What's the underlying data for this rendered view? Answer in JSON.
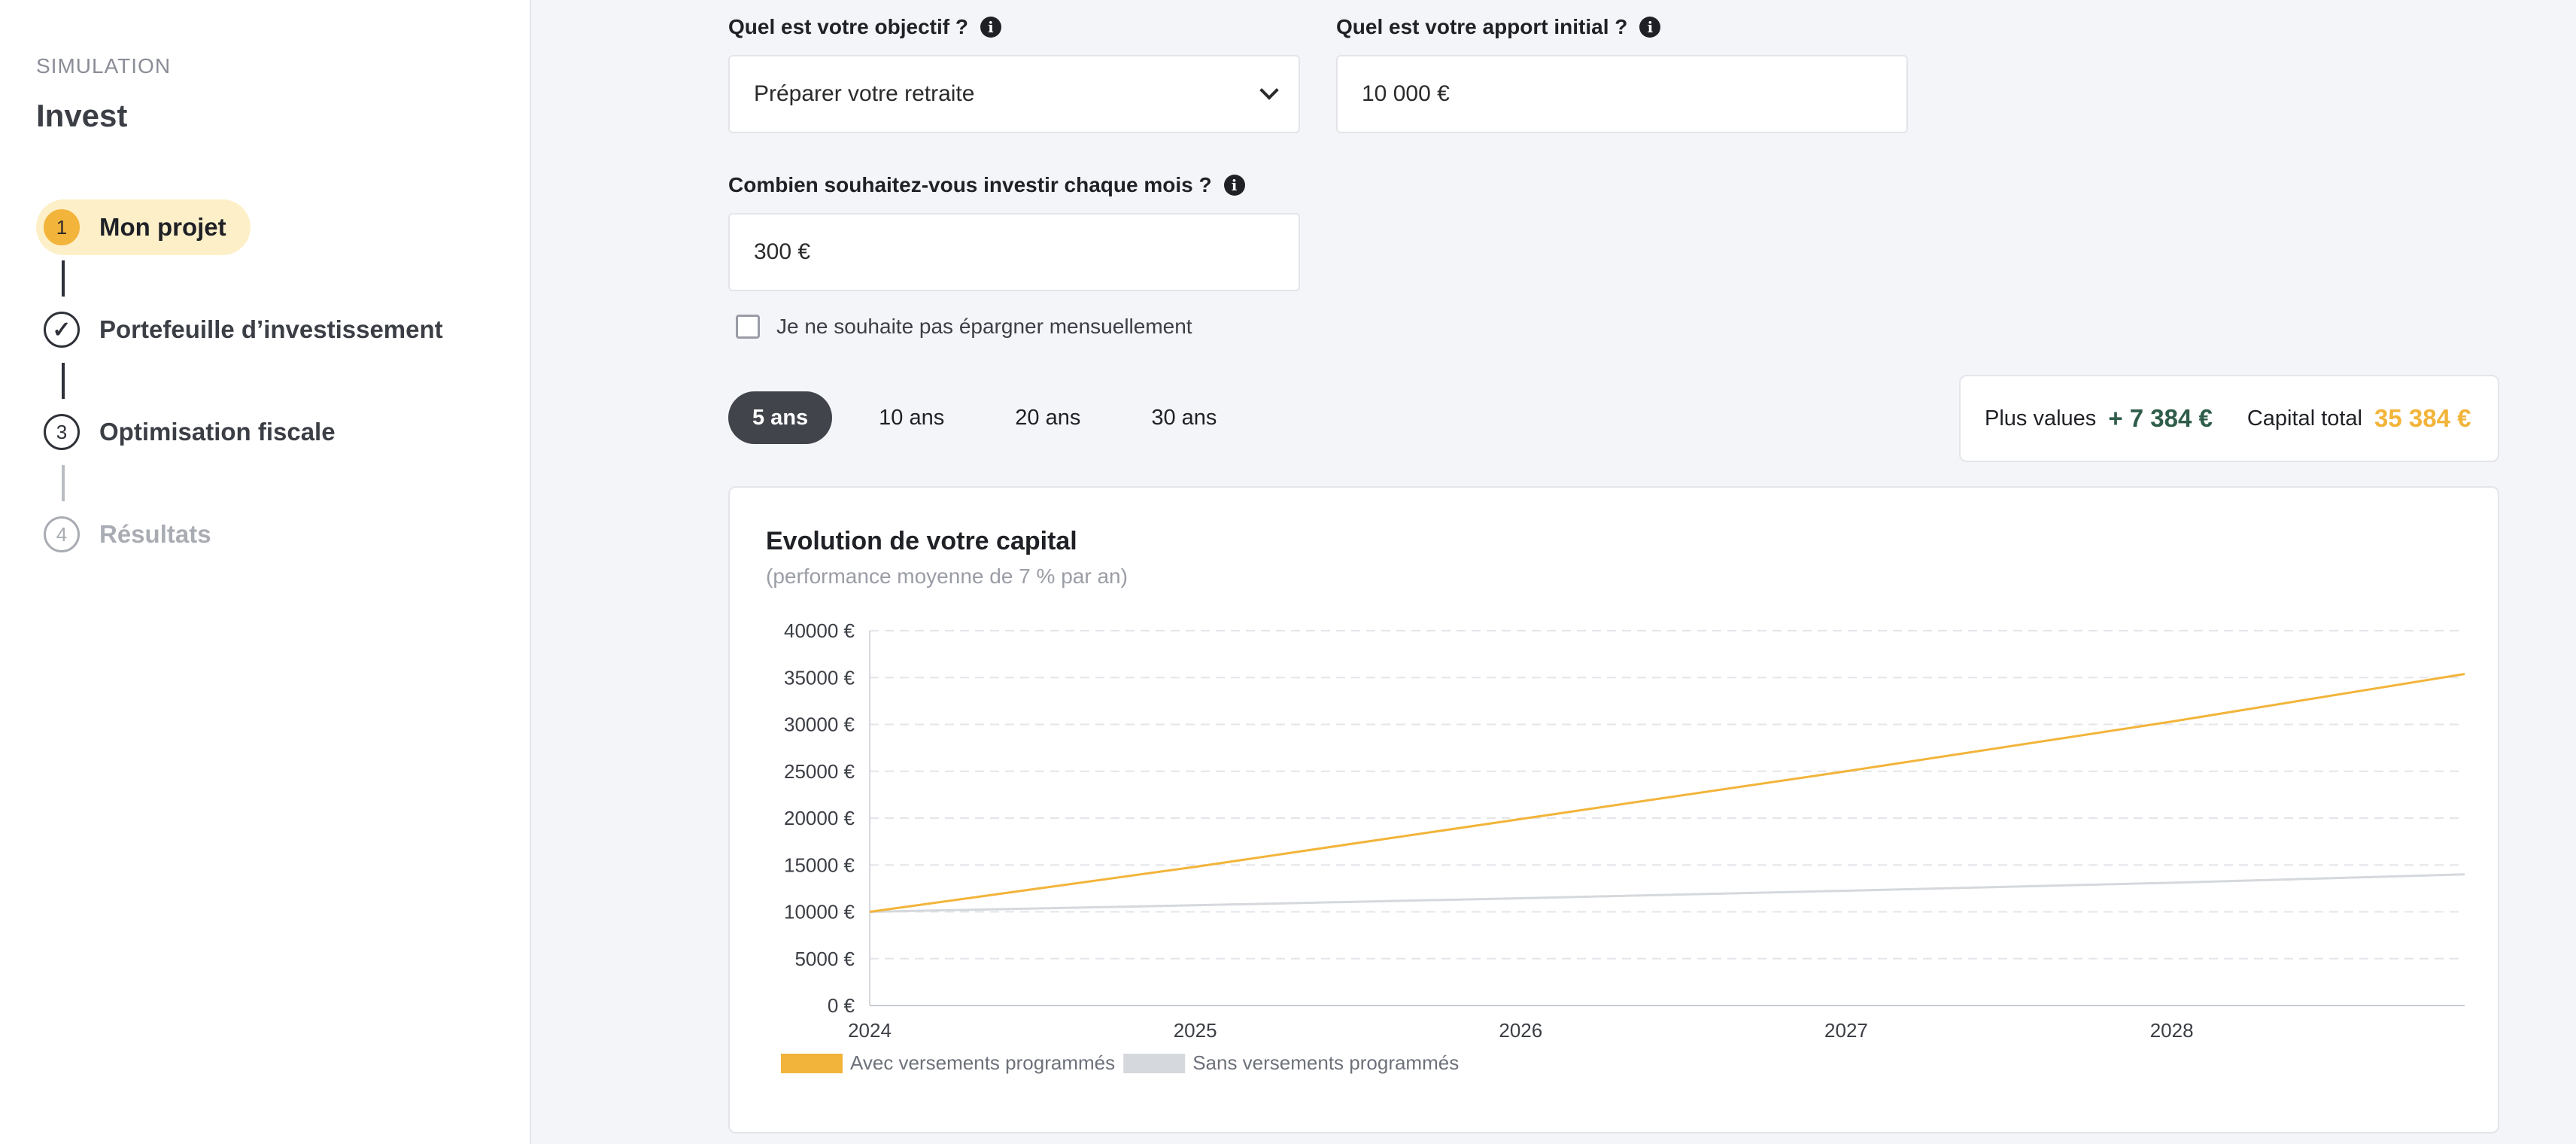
{
  "sidebar": {
    "section_label": "SIMULATION",
    "brand": "Invest",
    "steps": [
      {
        "num": "1",
        "label": "Mon projet"
      },
      {
        "num": "✓",
        "label": "Portefeuille d’investissement"
      },
      {
        "num": "3",
        "label": "Optimisation fiscale"
      },
      {
        "num": "4",
        "label": "Résultats"
      }
    ]
  },
  "form": {
    "objective": {
      "label": "Quel est votre objectif ?",
      "value": "Préparer votre retraite"
    },
    "initial": {
      "label": "Quel est votre apport initial ?",
      "value": "10 000 €"
    },
    "monthly": {
      "label": "Combien souhaitez-vous investir chaque mois ?",
      "value": "300 €"
    },
    "no_monthly": {
      "label": "Je ne souhaite pas épargner mensuellement",
      "checked": false
    },
    "info_icon": "i"
  },
  "periods": {
    "options": [
      "5 ans",
      "10 ans",
      "20 ans",
      "30 ans"
    ],
    "selected": "5 ans"
  },
  "summary": {
    "gains_label": "Plus values",
    "gains_value": "+ 7 384 €",
    "total_label": "Capital total",
    "total_value": "35 384 €"
  },
  "chart_card": {
    "title": "Evolution de votre capital",
    "subtitle": "(performance moyenne de 7 % par an)"
  },
  "chart_data": {
    "type": "line",
    "title": "Evolution de votre capital",
    "subtitle": "(performance moyenne de 7 % par an)",
    "x": [
      2024,
      2025,
      2026,
      2027,
      2028,
      2028.9
    ],
    "x_tick_labels": [
      "2024",
      "2025",
      "2026",
      "2027",
      "2028"
    ],
    "y_tick_labels": [
      "0 €",
      "5000 €",
      "10000 €",
      "15000 €",
      "20000 €",
      "25000 €",
      "30000 €",
      "35000 €",
      "40000 €"
    ],
    "ylim": [
      0,
      40000
    ],
    "xlim": [
      2024,
      2028.9
    ],
    "grid": "horizontal dashed",
    "legend_position": "bottom-left",
    "series": [
      {
        "name": "Avec versements programmés",
        "color": "#f2b43a",
        "values": [
          10000,
          14800,
          19900,
          25000,
          30300,
          35384
        ]
      },
      {
        "name": "Sans versements programmés",
        "color": "#d5d8dc",
        "values": [
          10000,
          10700,
          11450,
          12250,
          13100,
          14000
        ]
      }
    ]
  }
}
